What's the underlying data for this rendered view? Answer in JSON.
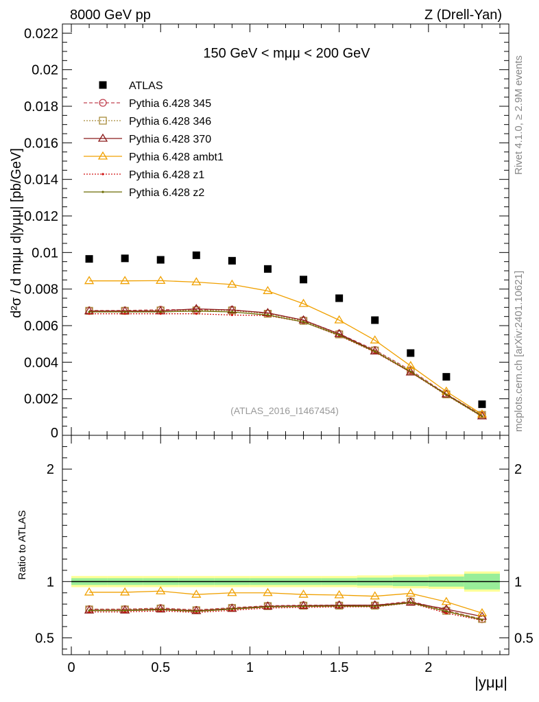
{
  "header": {
    "left": "8000 GeV pp",
    "right": "Z (Drell-Yan)"
  },
  "side_labels": {
    "rivet": "Rivet 4.1.0, ≥ 2.9M events",
    "mcplots": "mcplots.cern.ch [arXiv:2401.10621]"
  },
  "chart_data": [
    {
      "type": "line",
      "title": "150 GeV < mμμ < 200 GeV",
      "watermark": "(ATLAS_2016_I1467454)",
      "ylabel": "d²σ / d mμμ d|yμμ| [pb/GeV]",
      "ylim": [
        0,
        0.0225
      ],
      "yticks": [
        0.002,
        0.004,
        0.006,
        0.008,
        0.01,
        0.012,
        0.014,
        0.016,
        0.018,
        0.02,
        0.022
      ],
      "ytick_labels": [
        "0.002",
        "0.004",
        "0.006",
        "0.008",
        "0.01",
        "0.012",
        "0.014",
        "0.016",
        "0.018",
        "0.02",
        "0.022"
      ],
      "y_zero_label": "0",
      "xlim": [
        -0.05,
        2.45
      ],
      "x": [
        0.1,
        0.3,
        0.5,
        0.7,
        0.9,
        1.1,
        1.3,
        1.5,
        1.7,
        1.9,
        2.1,
        2.3
      ],
      "series": [
        {
          "name": "ATLAS",
          "color": "#000000",
          "marker": "square",
          "line": "none",
          "values": [
            0.00965,
            0.00968,
            0.0096,
            0.00985,
            0.00955,
            0.0091,
            0.00852,
            0.0075,
            0.0063,
            0.0045,
            0.0032,
            0.0017
          ]
        },
        {
          "name": "Pythia 6.428 345",
          "color": "#c0404f",
          "marker": "circle",
          "line": "dashed",
          "values": [
            0.00683,
            0.00683,
            0.00687,
            0.00687,
            0.00687,
            0.00667,
            0.0063,
            0.00556,
            0.00467,
            0.00356,
            0.00226,
            0.00111
          ]
        },
        {
          "name": "Pythia 6.428 346",
          "color": "#a88b3a",
          "marker": "square-open",
          "line": "dotted",
          "values": [
            0.00681,
            0.00681,
            0.00683,
            0.00683,
            0.00683,
            0.00665,
            0.00626,
            0.00552,
            0.00464,
            0.00352,
            0.00224,
            0.00112
          ]
        },
        {
          "name": "Pythia 6.428 370",
          "color": "#8b1a1a",
          "marker": "triangle",
          "line": "solid",
          "values": [
            0.0068,
            0.0068,
            0.0068,
            0.00692,
            0.00685,
            0.0067,
            0.0063,
            0.00555,
            0.0046,
            0.00345,
            0.00225,
            0.00105
          ]
        },
        {
          "name": "Pythia 6.428 ambt1",
          "color": "#f0a000",
          "marker": "triangle",
          "line": "solid",
          "values": [
            0.00845,
            0.00845,
            0.00846,
            0.00838,
            0.00825,
            0.0079,
            0.0072,
            0.0063,
            0.0052,
            0.0038,
            0.0024,
            0.00115
          ]
        },
        {
          "name": "Pythia 6.428 z1",
          "color": "#d01010",
          "marker": "dot",
          "line": "dotted",
          "values": [
            0.00665,
            0.00665,
            0.00665,
            0.00665,
            0.00658,
            0.00655,
            0.0062,
            0.00545,
            0.00455,
            0.00345,
            0.0022,
            0.00102
          ]
        },
        {
          "name": "Pythia 6.428 z2",
          "color": "#6b6b00",
          "marker": "dot",
          "line": "solid",
          "values": [
            0.00675,
            0.00675,
            0.00675,
            0.0068,
            0.00675,
            0.00658,
            0.0062,
            0.00548,
            0.00458,
            0.00348,
            0.00222,
            0.00104
          ]
        }
      ]
    },
    {
      "type": "line",
      "ylabel": "Ratio to ATLAS",
      "xlabel": "|yμμ|",
      "ylim": [
        0.35,
        2.3
      ],
      "yticks": [
        0.5,
        1,
        2
      ],
      "ytick_labels": [
        "0.5",
        "1",
        "2"
      ],
      "xlim": [
        -0.05,
        2.45
      ],
      "xticks": [
        0,
        0.5,
        1,
        1.5,
        2
      ],
      "xtick_labels": [
        "0",
        "0.5",
        "1",
        "1.5",
        "2"
      ],
      "x": [
        0.1,
        0.3,
        0.5,
        0.7,
        0.9,
        1.1,
        1.3,
        1.5,
        1.7,
        1.9,
        2.1,
        2.3
      ],
      "bin_edges": [
        0,
        0.2,
        0.4,
        0.6,
        0.8,
        1.0,
        1.2,
        1.4,
        1.6,
        1.8,
        2.0,
        2.2,
        2.4
      ],
      "band_stat_halfwidth": [
        0.03,
        0.03,
        0.03,
        0.03,
        0.03,
        0.03,
        0.03,
        0.03,
        0.035,
        0.04,
        0.045,
        0.07
      ],
      "band_total_halfwidth": [
        0.05,
        0.05,
        0.05,
        0.05,
        0.05,
        0.05,
        0.05,
        0.05,
        0.055,
        0.06,
        0.065,
        0.09
      ],
      "series": [
        {
          "name": "Pythia 6.428 345",
          "color": "#c0404f",
          "marker": "circle",
          "line": "dashed",
          "values": [
            0.755,
            0.755,
            0.765,
            0.748,
            0.768,
            0.785,
            0.79,
            0.79,
            0.79,
            0.825,
            0.745,
            0.665
          ]
        },
        {
          "name": "Pythia 6.428 346",
          "color": "#a88b3a",
          "marker": "square-open",
          "line": "dotted",
          "values": [
            0.752,
            0.752,
            0.76,
            0.745,
            0.765,
            0.782,
            0.786,
            0.786,
            0.786,
            0.82,
            0.74,
            0.668
          ]
        },
        {
          "name": "Pythia 6.428 370",
          "color": "#8b1a1a",
          "marker": "triangle",
          "line": "solid",
          "values": [
            0.745,
            0.745,
            0.755,
            0.74,
            0.76,
            0.78,
            0.785,
            0.79,
            0.79,
            0.815,
            0.755,
            0.69
          ]
        },
        {
          "name": "Pythia 6.428 ambt1",
          "color": "#f0a000",
          "marker": "triangle",
          "line": "solid",
          "values": [
            0.905,
            0.905,
            0.915,
            0.885,
            0.9,
            0.9,
            0.885,
            0.88,
            0.87,
            0.895,
            0.82,
            0.72
          ]
        },
        {
          "name": "Pythia 6.428 z1",
          "color": "#d01010",
          "marker": "dot",
          "line": "dotted",
          "values": [
            0.73,
            0.73,
            0.74,
            0.725,
            0.745,
            0.765,
            0.77,
            0.775,
            0.775,
            0.81,
            0.72,
            0.655
          ]
        },
        {
          "name": "Pythia 6.428 z2",
          "color": "#6b6b00",
          "marker": "dot",
          "line": "solid",
          "values": [
            0.742,
            0.742,
            0.75,
            0.735,
            0.755,
            0.775,
            0.78,
            0.782,
            0.78,
            0.812,
            0.735,
            0.66
          ]
        }
      ]
    }
  ]
}
